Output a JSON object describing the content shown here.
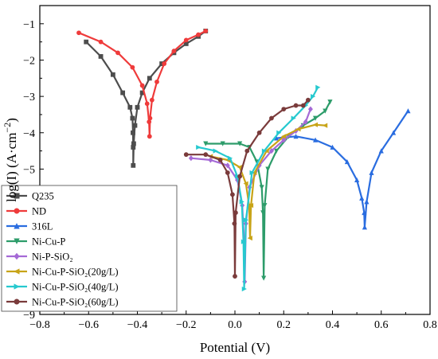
{
  "chart_data": {
    "type": "line",
    "xlabel": "Potential (V)",
    "ylabel": {
      "base": "log(I) (A·cm",
      "sup": "−2",
      "end": ")"
    },
    "xlim": [
      -0.8,
      0.8
    ],
    "ylim": [
      -9,
      -0.5
    ],
    "xticks": [
      -0.8,
      -0.6,
      -0.4,
      -0.2,
      0.0,
      0.2,
      0.4,
      0.6,
      0.8
    ],
    "xtick_labels": [
      "−0.8",
      "−0.6",
      "−0.4",
      "−0.2",
      "0.0",
      "0.2",
      "0.4",
      "0.6",
      "0.8"
    ],
    "yticks": [
      -9,
      -8,
      -7,
      -6,
      -5,
      -4,
      -3,
      -2,
      -1
    ],
    "ytick_labels": [
      "−9",
      "−8",
      "−7",
      "−6",
      "−5",
      "−4",
      "−3",
      "−2",
      "−1"
    ],
    "grid": false,
    "legend_position": "bottom-left",
    "series": [
      {
        "name": "Q235",
        "color": "#4d4d4d",
        "marker": "square",
        "points": [
          [
            -0.61,
            -1.5
          ],
          [
            -0.55,
            -1.9
          ],
          [
            -0.5,
            -2.4
          ],
          [
            -0.46,
            -2.9
          ],
          [
            -0.43,
            -3.3
          ],
          [
            -0.42,
            -3.6
          ],
          [
            -0.418,
            -4.0
          ],
          [
            -0.417,
            -4.4
          ],
          [
            -0.417,
            -4.9
          ],
          [
            -0.415,
            -4.3
          ],
          [
            -0.41,
            -3.8
          ],
          [
            -0.4,
            -3.3
          ],
          [
            -0.38,
            -2.9
          ],
          [
            -0.35,
            -2.5
          ],
          [
            -0.3,
            -2.1
          ],
          [
            -0.25,
            -1.8
          ],
          [
            -0.2,
            -1.55
          ],
          [
            -0.15,
            -1.35
          ],
          [
            -0.12,
            -1.2
          ]
        ]
      },
      {
        "name": "ND",
        "color": "#ef3b3b",
        "marker": "circle",
        "points": [
          [
            -0.64,
            -1.25
          ],
          [
            -0.55,
            -1.5
          ],
          [
            -0.48,
            -1.8
          ],
          [
            -0.42,
            -2.2
          ],
          [
            -0.38,
            -2.7
          ],
          [
            -0.36,
            -3.2
          ],
          [
            -0.352,
            -3.7
          ],
          [
            -0.35,
            -4.1
          ],
          [
            -0.348,
            -3.6
          ],
          [
            -0.34,
            -3.1
          ],
          [
            -0.32,
            -2.6
          ],
          [
            -0.29,
            -2.1
          ],
          [
            -0.25,
            -1.75
          ],
          [
            -0.2,
            -1.45
          ],
          [
            -0.15,
            -1.3
          ],
          [
            -0.12,
            -1.2
          ]
        ]
      },
      {
        "name": "316L",
        "color": "#2a6de0",
        "marker": "triangle-up",
        "points": [
          [
            0.17,
            -4.15
          ],
          [
            0.25,
            -4.1
          ],
          [
            0.33,
            -4.2
          ],
          [
            0.4,
            -4.4
          ],
          [
            0.46,
            -4.8
          ],
          [
            0.5,
            -5.3
          ],
          [
            0.52,
            -5.8
          ],
          [
            0.53,
            -6.2
          ],
          [
            0.532,
            -6.6
          ],
          [
            0.54,
            -5.9
          ],
          [
            0.56,
            -5.1
          ],
          [
            0.6,
            -4.5
          ],
          [
            0.65,
            -4.0
          ],
          [
            0.71,
            -3.4
          ]
        ]
      },
      {
        "name": "Ni-Cu-P",
        "color": "#2d9c6a",
        "marker": "triangle-down",
        "points": [
          [
            -0.12,
            -4.3
          ],
          [
            -0.05,
            -4.3
          ],
          [
            0.02,
            -4.3
          ],
          [
            0.06,
            -4.4
          ],
          [
            0.09,
            -4.8
          ],
          [
            0.11,
            -5.5
          ],
          [
            0.115,
            -6.2
          ],
          [
            0.118,
            -8.0
          ],
          [
            0.122,
            -6.0
          ],
          [
            0.135,
            -5.0
          ],
          [
            0.17,
            -4.5
          ],
          [
            0.22,
            -4.1
          ],
          [
            0.28,
            -3.8
          ],
          [
            0.33,
            -3.6
          ],
          [
            0.37,
            -3.4
          ],
          [
            0.39,
            -3.15
          ]
        ]
      },
      {
        "name": "Ni-P-SiO₂",
        "color": "#a56ad6",
        "marker": "diamond",
        "points": [
          [
            -0.18,
            -4.7
          ],
          [
            -0.1,
            -4.75
          ],
          [
            -0.03,
            -4.9
          ],
          [
            0.01,
            -5.3
          ],
          [
            0.03,
            -6.0
          ],
          [
            0.038,
            -7.0
          ],
          [
            0.04,
            -8.1
          ],
          [
            0.045,
            -6.5
          ],
          [
            0.06,
            -5.5
          ],
          [
            0.1,
            -4.9
          ],
          [
            0.15,
            -4.5
          ],
          [
            0.2,
            -4.2
          ],
          [
            0.25,
            -3.95
          ],
          [
            0.29,
            -3.7
          ],
          [
            0.31,
            -3.35
          ]
        ]
      },
      {
        "name": "Ni-Cu-P-SiO₂(20g/L)",
        "color": "#c8a418",
        "marker": "triangle-left",
        "points": [
          [
            -0.1,
            -4.65
          ],
          [
            -0.03,
            -4.75
          ],
          [
            0.02,
            -4.95
          ],
          [
            0.045,
            -5.4
          ],
          [
            0.058,
            -6.0
          ],
          [
            0.062,
            -6.9
          ],
          [
            0.066,
            -6.0
          ],
          [
            0.08,
            -5.1
          ],
          [
            0.13,
            -4.5
          ],
          [
            0.2,
            -4.1
          ],
          [
            0.26,
            -3.9
          ],
          [
            0.33,
            -3.78
          ],
          [
            0.37,
            -3.8
          ]
        ]
      },
      {
        "name": "Ni-Cu-P-SiO₂(40g/L)",
        "color": "#26c9cf",
        "marker": "triangle-right",
        "points": [
          [
            -0.15,
            -4.4
          ],
          [
            -0.08,
            -4.5
          ],
          [
            -0.02,
            -4.7
          ],
          [
            0.01,
            -5.2
          ],
          [
            0.028,
            -5.9
          ],
          [
            0.035,
            -7.0
          ],
          [
            0.038,
            -8.3
          ],
          [
            0.045,
            -6.4
          ],
          [
            0.07,
            -5.1
          ],
          [
            0.12,
            -4.5
          ],
          [
            0.18,
            -4.0
          ],
          [
            0.24,
            -3.6
          ],
          [
            0.29,
            -3.25
          ],
          [
            0.32,
            -3.0
          ],
          [
            0.34,
            -2.75
          ]
        ]
      },
      {
        "name": "Ni-Cu-P-SiO₂(60g/L)",
        "color": "#7a3b3b",
        "marker": "circle",
        "points": [
          [
            -0.2,
            -4.6
          ],
          [
            -0.12,
            -4.6
          ],
          [
            -0.06,
            -4.75
          ],
          [
            -0.03,
            -5.1
          ],
          [
            -0.01,
            -5.7
          ],
          [
            -0.002,
            -6.5
          ],
          [
            0.0,
            -7.95
          ],
          [
            0.003,
            -6.2
          ],
          [
            0.02,
            -5.2
          ],
          [
            0.05,
            -4.5
          ],
          [
            0.1,
            -4.0
          ],
          [
            0.15,
            -3.6
          ],
          [
            0.2,
            -3.35
          ],
          [
            0.25,
            -3.25
          ],
          [
            0.28,
            -3.25
          ],
          [
            0.3,
            -3.1
          ]
        ]
      }
    ]
  }
}
